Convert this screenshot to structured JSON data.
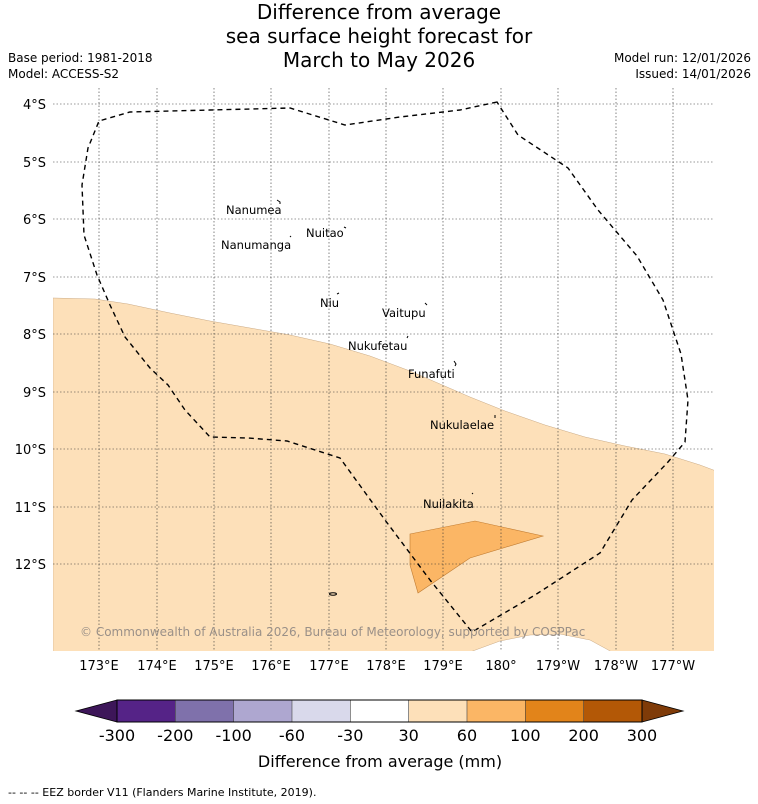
{
  "title": [
    "Difference from average",
    "sea surface height forecast for",
    "March to May 2026"
  ],
  "base_period": "Base period: 1981-2018",
  "model": "Model: ACCESS-S2",
  "model_run": "Model run: 12/01/2026",
  "issued": "Issued: 14/01/2026",
  "lat_labels": [
    "4°S",
    "5°S",
    "6°S",
    "7°S",
    "8°S",
    "9°S",
    "10°S",
    "11°S",
    "12°S"
  ],
  "lon_labels": [
    "173°E",
    "174°E",
    "175°E",
    "176°E",
    "177°E",
    "178°E",
    "179°E",
    "180°",
    "179°W",
    "178°W",
    "177°W"
  ],
  "islands": [
    "Nanumea",
    "Nuitao",
    "Nanumanga",
    "Niu",
    "Vaitupu",
    "Nukufetau",
    "Funafuti",
    "Nukulaelae",
    "Nuilakita"
  ],
  "copyright": "© Commonwealth of Australia 2026, Bureau of Meteorology, supported by COSPPac",
  "colorbar": {
    "ticks": [
      "-300",
      "-200",
      "-100",
      "-60",
      "-30",
      "30",
      "60",
      "100",
      "200",
      "300"
    ],
    "colors": [
      "#3d1659",
      "#552387",
      "#7f71ab",
      "#aea7d0",
      "#d9d9eb",
      "#ffffff",
      "#fde0b9",
      "#fbb665",
      "#e2841a",
      "#b35806",
      "#7f3b08"
    ],
    "label": "Difference from average (mm)"
  },
  "footer": "--  --  -- EEZ border V11 (Flanders Marine Institute, 2019)."
}
